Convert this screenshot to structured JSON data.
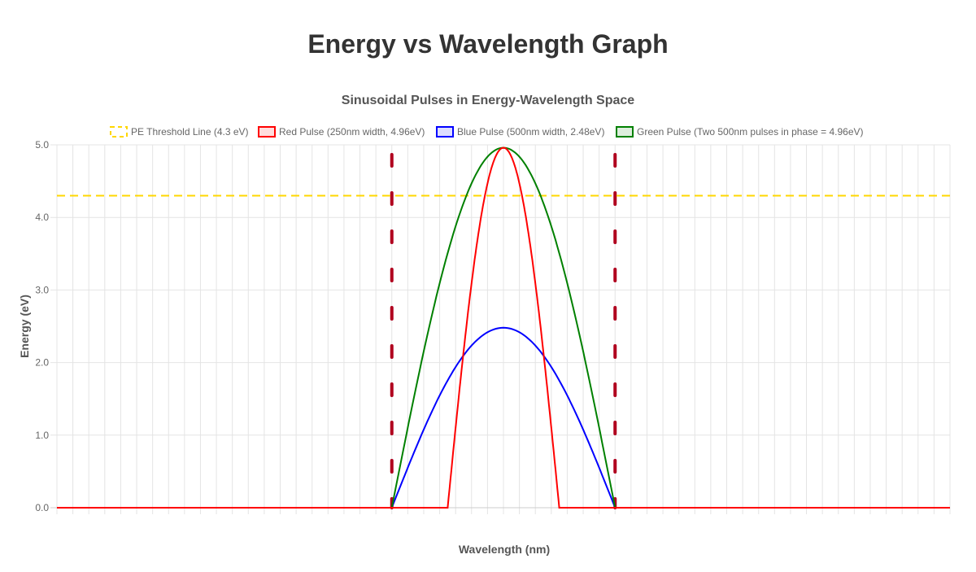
{
  "page": {
    "title": "Energy vs Wavelength Graph"
  },
  "chart_data": {
    "type": "line",
    "title": "Sinusoidal Pulses in Energy-Wavelength Space",
    "xlabel": "Wavelength (nm)",
    "ylabel": "Energy (eV)",
    "xlim": [
      0,
      2000
    ],
    "ylim": [
      0,
      5
    ],
    "yticks": [
      "0.0",
      "1.0",
      "2.0",
      "3.0",
      "4.0",
      "5.0"
    ],
    "grid": true,
    "legend_position": "top",
    "series": [
      {
        "name": "PE Threshold Line (4.3 eV)",
        "kind": "hline",
        "value": 4.3,
        "color": "#FFD700",
        "dashed": true
      },
      {
        "name": "Red Pulse (250nm width, 4.96eV)",
        "kind": "pulse",
        "center": 1000,
        "width": 250,
        "amplitude": 4.96,
        "color": "#FF0000"
      },
      {
        "name": "Blue Pulse (500nm width, 2.48eV)",
        "kind": "pulse",
        "center": 1000,
        "width": 500,
        "amplitude": 2.48,
        "color": "#0000FF"
      },
      {
        "name": "Green Pulse (Two 500nm pulses in phase = 4.96eV)",
        "kind": "pulse",
        "center": 1000,
        "width": 500,
        "amplitude": 4.96,
        "color": "#008000"
      }
    ],
    "markers": [
      {
        "kind": "vline",
        "x": 750,
        "color": "#B0001E"
      },
      {
        "kind": "vline",
        "x": 1250,
        "color": "#B0001E"
      }
    ]
  }
}
